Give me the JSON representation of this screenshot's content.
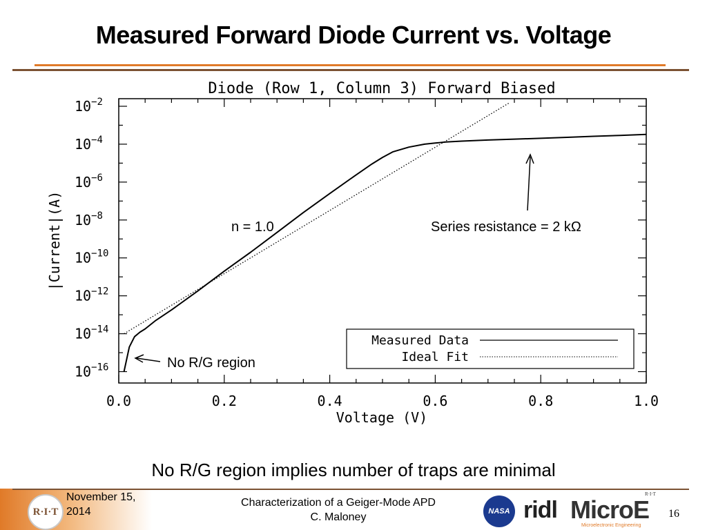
{
  "slide": {
    "title": "Measured Forward Diode Current vs. Voltage",
    "bottom_caption": "No R/G region implies number of traps are minimal"
  },
  "annotations": {
    "ideality": "n = 1.0",
    "series_resistance": "Series resistance = 2 kΩ",
    "rg_region": "No R/G region"
  },
  "footer": {
    "date_line1": "November 15,",
    "date_line2": "2014",
    "presentation_title": "Characterization of a Geiger-Mode APD",
    "author": "C. Maloney",
    "page_number": "16",
    "logos": {
      "rit_seal": "R·I·T",
      "nasa": "NASA",
      "ridl": "ridl",
      "microe": "MicroE",
      "microe_sub": "Microelectronic Engineering",
      "microe_rit": "R·I·T"
    }
  },
  "colors": {
    "title_rule_brown": "#7b5132",
    "title_rule_orange": "#e07a28",
    "plot_line": "#000000"
  },
  "chart_data": {
    "type": "line",
    "title": "Diode (Row 1, Column 3) Forward Biased",
    "xlabel": "Voltage (V)",
    "ylabel": "|Current|(A)",
    "xlim": [
      0.0,
      1.0
    ],
    "ylim_log10": [
      -16.6,
      -1.6
    ],
    "y_scale": "log",
    "x_ticks": [
      "0.0",
      "0.2",
      "0.4",
      "0.6",
      "0.8",
      "1.0"
    ],
    "x_tick_values": [
      0.0,
      0.2,
      0.4,
      0.6,
      0.8,
      1.0
    ],
    "y_tick_exponents": [
      -2,
      -4,
      -6,
      -8,
      -10,
      -12,
      -14,
      -16
    ],
    "legend_position": "bottom-right",
    "series": [
      {
        "name": "Measured Data",
        "style": "solid",
        "x": [
          0.01,
          0.02,
          0.03,
          0.04,
          0.05,
          0.07,
          0.1,
          0.15,
          0.2,
          0.25,
          0.3,
          0.35,
          0.4,
          0.45,
          0.48,
          0.5,
          0.52,
          0.55,
          0.58,
          0.6,
          0.62,
          0.65,
          0.7,
          0.75,
          0.8,
          0.85,
          0.9,
          0.95,
          1.0
        ],
        "current": [
          1e-16,
          2e-15,
          7e-15,
          1.2e-14,
          1.8e-14,
          5e-14,
          1.8e-13,
          1.8e-12,
          2e-11,
          2e-10,
          2.2e-09,
          2.5e-08,
          2.5e-07,
          2.4e-06,
          9e-06,
          2e-05,
          4e-05,
          7e-05,
          0.0001,
          0.000115,
          0.00013,
          0.000145,
          0.000165,
          0.000185,
          0.000205,
          0.00023,
          0.00026,
          0.00029,
          0.00033
        ]
      },
      {
        "name": "Ideal Fit",
        "style": "dotted",
        "x": [
          0.01,
          0.74
        ],
        "current": [
          1e-14,
          0.015
        ]
      }
    ]
  }
}
